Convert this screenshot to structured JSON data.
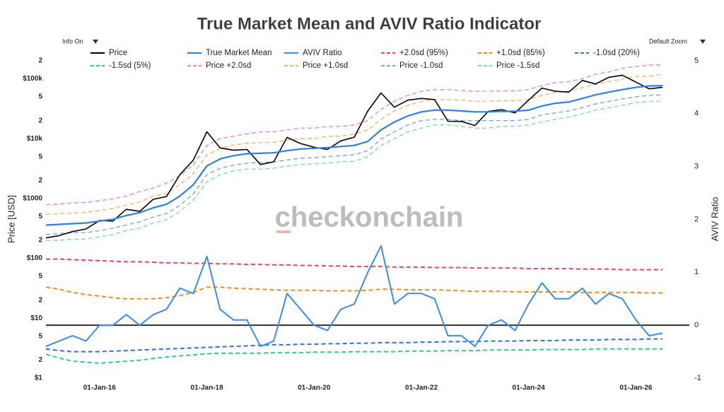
{
  "chart_data": {
    "type": "line",
    "title": "True Market Mean and AVIV Ratio Indicator",
    "controls": {
      "info": "Info On",
      "zoom": "Default Zoom"
    },
    "watermark": "checkonchain",
    "y_label": "Price [USD]",
    "y2_label": "AVIV Ratio",
    "y_log": true,
    "ylim": [
      1,
      200000
    ],
    "yticks": [
      {
        "value": 1,
        "label": "$1"
      },
      2,
      5,
      {
        "value": 10,
        "label": "$10"
      },
      {
        "value": 20,
        "label": "2"
      },
      {
        "value": 50,
        "label": "5"
      },
      {
        "value": 100,
        "label": "$100"
      },
      {
        "value": 200,
        "label": "2"
      },
      {
        "value": 500,
        "label": "5"
      },
      {
        "value": 1000,
        "label": "$1000"
      },
      {
        "value": 2000,
        "label": "2"
      },
      {
        "value": 5000,
        "label": "5"
      },
      {
        "value": 10000,
        "label": "$10k"
      },
      {
        "value": 20000,
        "label": "2"
      },
      {
        "value": 50000,
        "label": "5"
      },
      {
        "value": 100000,
        "label": "$100k"
      },
      {
        "value": 200000,
        "label": "2"
      }
    ],
    "y2lim": [
      -1,
      5
    ],
    "y2ticks": [
      -1,
      0,
      1,
      2,
      3,
      4,
      5
    ],
    "y2_reference": 0,
    "xlim": [
      "2015-01-01",
      "2026-12-31"
    ],
    "xticks": [
      {
        "value": "2016-01-01",
        "label": "01-Jan-16"
      },
      {
        "value": "2018-01-01",
        "label": "01-Jan-18"
      },
      {
        "value": "2020-01-01",
        "label": "01-Jan-20"
      },
      {
        "value": "2022-01-01",
        "label": "01-Jan-22"
      },
      {
        "value": "2024-01-01",
        "label": "01-Jan-24"
      },
      {
        "value": "2026-01-01",
        "label": "01-Jan-26"
      }
    ],
    "x": [
      "2015-01-01",
      "2015-04-01",
      "2015-07-01",
      "2015-10-01",
      "2016-01-01",
      "2016-04-01",
      "2016-07-01",
      "2016-10-01",
      "2017-01-01",
      "2017-04-01",
      "2017-07-01",
      "2017-10-01",
      "2018-01-01",
      "2018-04-01",
      "2018-07-01",
      "2018-10-01",
      "2019-01-01",
      "2019-04-01",
      "2019-07-01",
      "2019-10-01",
      "2020-01-01",
      "2020-04-01",
      "2020-07-01",
      "2020-10-01",
      "2021-01-01",
      "2021-04-01",
      "2021-07-01",
      "2021-10-01",
      "2022-01-01",
      "2022-04-01",
      "2022-07-01",
      "2022-10-01",
      "2023-01-01",
      "2023-04-01",
      "2023-07-01",
      "2023-10-01",
      "2024-01-01",
      "2024-04-01",
      "2024-07-01",
      "2024-10-01",
      "2025-01-01",
      "2025-04-01",
      "2025-07-01",
      "2025-10-01",
      "2026-01-01",
      "2026-04-01",
      "2026-07-01"
    ],
    "series": [
      {
        "name": "Price",
        "color": "#000000",
        "width": 1.6,
        "dash": false,
        "axis": "y",
        "values": [
          220,
          240,
          280,
          310,
          430,
          420,
          660,
          610,
          970,
          1080,
          2500,
          4400,
          13000,
          7000,
          6400,
          6600,
          3700,
          4100,
          10500,
          8300,
          7200,
          6600,
          9200,
          10600,
          29000,
          58000,
          33500,
          44000,
          47000,
          45000,
          19500,
          19400,
          16600,
          28500,
          30500,
          27000,
          44000,
          70000,
          62000,
          60000,
          94000,
          82000,
          106000,
          115000,
          88000,
          68000,
          72000
        ]
      },
      {
        "name": "True Market Mean",
        "color": "#2f7fe0",
        "width": 2.2,
        "dash": false,
        "axis": "y",
        "values": [
          360,
          370,
          380,
          390,
          420,
          450,
          520,
          580,
          700,
          800,
          1100,
          1700,
          3500,
          4600,
          5200,
          5600,
          5700,
          5800,
          6300,
          6700,
          6900,
          7100,
          7400,
          7700,
          9000,
          14000,
          19000,
          24000,
          28000,
          30000,
          30000,
          29000,
          28000,
          28000,
          28500,
          28700,
          30000,
          35000,
          39000,
          41000,
          47000,
          54000,
          60000,
          66000,
          72000,
          76000,
          77000
        ]
      },
      {
        "name": "AVIV Ratio",
        "color": "#3d8be6",
        "width": 2,
        "dash": false,
        "axis": "y2",
        "values": [
          -0.4,
          -0.3,
          -0.2,
          -0.3,
          0.0,
          0.0,
          0.2,
          0.0,
          0.2,
          0.3,
          0.7,
          0.6,
          1.3,
          0.3,
          0.1,
          0.1,
          -0.4,
          -0.3,
          0.6,
          0.3,
          0.0,
          -0.1,
          0.3,
          0.4,
          1.0,
          1.5,
          0.4,
          0.6,
          0.6,
          0.5,
          -0.2,
          -0.2,
          -0.4,
          0.0,
          0.1,
          -0.1,
          0.4,
          0.8,
          0.5,
          0.5,
          0.7,
          0.4,
          0.6,
          0.5,
          0.1,
          -0.2,
          -0.15
        ]
      },
      {
        "name": "+2.0sd (95%)",
        "color": "#ef3e6a",
        "width": 2,
        "dash": true,
        "axis": "y2",
        "values": [
          1.25,
          1.25,
          1.24,
          1.23,
          1.22,
          1.21,
          1.2,
          1.2,
          1.19,
          1.18,
          1.18,
          1.17,
          1.17,
          1.16,
          1.16,
          1.15,
          1.15,
          1.14,
          1.14,
          1.13,
          1.13,
          1.12,
          1.12,
          1.11,
          1.11,
          1.11,
          1.1,
          1.1,
          1.1,
          1.09,
          1.09,
          1.09,
          1.08,
          1.08,
          1.08,
          1.08,
          1.07,
          1.07,
          1.07,
          1.07,
          1.06,
          1.06,
          1.06,
          1.05,
          1.05,
          1.05,
          1.05
        ]
      },
      {
        "name": "+1.0sd (85%)",
        "color": "#f58a1f",
        "width": 2,
        "dash": true,
        "axis": "y2",
        "values": [
          0.72,
          0.68,
          0.62,
          0.58,
          0.55,
          0.52,
          0.5,
          0.5,
          0.5,
          0.52,
          0.56,
          0.62,
          0.72,
          0.72,
          0.7,
          0.69,
          0.68,
          0.67,
          0.66,
          0.66,
          0.66,
          0.65,
          0.65,
          0.65,
          0.66,
          0.68,
          0.68,
          0.67,
          0.67,
          0.67,
          0.66,
          0.65,
          0.64,
          0.64,
          0.64,
          0.63,
          0.63,
          0.63,
          0.63,
          0.63,
          0.62,
          0.62,
          0.62,
          0.62,
          0.62,
          0.61,
          0.61
        ]
      },
      {
        "name": "-1.0sd (20%)",
        "color": "#2f6fe0",
        "width": 2,
        "dash": true,
        "axis": "y2",
        "values": [
          -0.45,
          -0.48,
          -0.5,
          -0.5,
          -0.5,
          -0.49,
          -0.48,
          -0.47,
          -0.46,
          -0.45,
          -0.44,
          -0.43,
          -0.42,
          -0.41,
          -0.4,
          -0.39,
          -0.38,
          -0.37,
          -0.37,
          -0.36,
          -0.36,
          -0.35,
          -0.35,
          -0.34,
          -0.34,
          -0.33,
          -0.33,
          -0.33,
          -0.32,
          -0.32,
          -0.31,
          -0.31,
          -0.31,
          -0.3,
          -0.3,
          -0.3,
          -0.29,
          -0.29,
          -0.29,
          -0.28,
          -0.28,
          -0.28,
          -0.27,
          -0.27,
          -0.27,
          -0.26,
          -0.26
        ]
      },
      {
        "name": "-1.5sd (5%)",
        "color": "#2ecc8a",
        "width": 2,
        "dash": true,
        "axis": "y2",
        "values": [
          -0.55,
          -0.62,
          -0.68,
          -0.7,
          -0.72,
          -0.7,
          -0.68,
          -0.66,
          -0.63,
          -0.6,
          -0.58,
          -0.56,
          -0.54,
          -0.53,
          -0.53,
          -0.53,
          -0.53,
          -0.52,
          -0.52,
          -0.52,
          -0.51,
          -0.51,
          -0.51,
          -0.5,
          -0.5,
          -0.5,
          -0.5,
          -0.49,
          -0.49,
          -0.49,
          -0.48,
          -0.48,
          -0.48,
          -0.47,
          -0.47,
          -0.47,
          -0.47,
          -0.46,
          -0.46,
          -0.46,
          -0.46,
          -0.45,
          -0.45,
          -0.45,
          -0.45,
          -0.45,
          -0.45
        ]
      },
      {
        "name": "Price +2.0sd",
        "color": "#f08aa6",
        "width": 1.4,
        "dash": true,
        "axis": "y",
        "values": [
          790,
          810,
          840,
          860,
          920,
          990,
          1100,
          1300,
          1500,
          1800,
          2400,
          3700,
          7700,
          10000,
          11000,
          12000,
          13000,
          13000,
          14000,
          15000,
          15000,
          16000,
          16000,
          17000,
          20000,
          31000,
          42000,
          53000,
          62000,
          66000,
          66000,
          64000,
          62000,
          62000,
          63000,
          63000,
          66000,
          77000,
          86000,
          90000,
          100000,
          120000,
          130000,
          150000,
          160000,
          170000,
          170000
        ]
      },
      {
        "name": "Price +1.0sd",
        "color": "#f5b36b",
        "width": 1.4,
        "dash": true,
        "axis": "y",
        "values": [
          540,
          560,
          570,
          590,
          630,
          680,
          780,
          870,
          1100,
          1200,
          1700,
          2600,
          5300,
          6900,
          7800,
          8400,
          8600,
          8700,
          9500,
          10000,
          10000,
          11000,
          11000,
          12000,
          14000,
          21000,
          29000,
          36000,
          42000,
          45000,
          45000,
          44000,
          42000,
          42000,
          43000,
          43000,
          45000,
          53000,
          59000,
          62000,
          71000,
          81000,
          90000,
          99000,
          110000,
          110000,
          120000
        ]
      },
      {
        "name": "Price -1.0sd",
        "color": "#7aa7e6",
        "width": 1.4,
        "dash": true,
        "axis": "y",
        "values": [
          250,
          260,
          270,
          270,
          290,
          320,
          360,
          410,
          490,
          560,
          770,
          1200,
          2500,
          3200,
          3600,
          3900,
          4000,
          4100,
          4400,
          4700,
          4800,
          5000,
          5200,
          5400,
          6300,
          9800,
          13000,
          17000,
          20000,
          21000,
          21000,
          20000,
          20000,
          20000,
          20000,
          20000,
          21000,
          25000,
          27000,
          29000,
          33000,
          38000,
          42000,
          46000,
          50000,
          53000,
          54000
        ]
      },
      {
        "name": "Price -1.5sd",
        "color": "#7fdcb0",
        "width": 1.4,
        "dash": true,
        "axis": "y",
        "values": [
          200,
          200,
          210,
          210,
          230,
          250,
          290,
          320,
          390,
          440,
          610,
          940,
          1900,
          2500,
          2900,
          3100,
          3100,
          3200,
          3500,
          3700,
          3800,
          3900,
          4100,
          4200,
          5000,
          7700,
          10000,
          13000,
          15000,
          17000,
          17000,
          16000,
          15000,
          15000,
          16000,
          16000,
          17000,
          19000,
          21000,
          23000,
          26000,
          30000,
          33000,
          36000,
          40000,
          42000,
          42000
        ]
      }
    ]
  }
}
